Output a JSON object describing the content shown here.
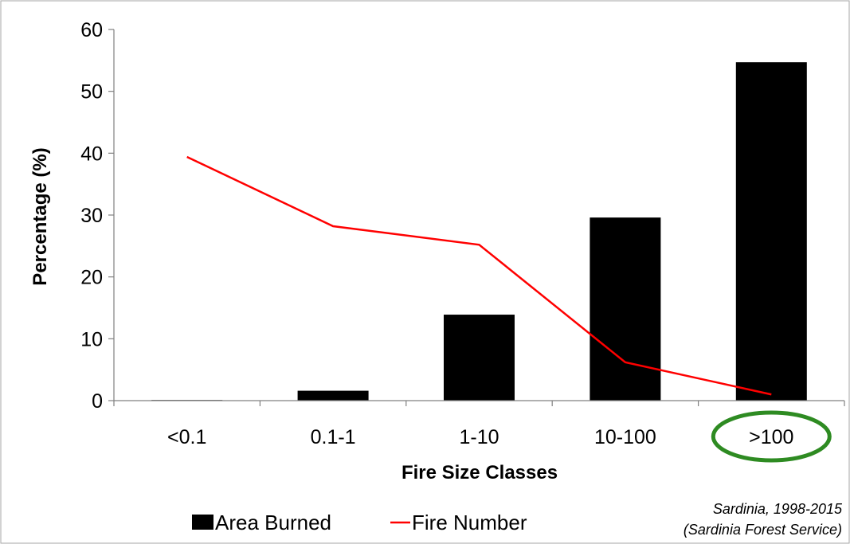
{
  "chart_data": {
    "type": "bar",
    "categories": [
      "<0.1",
      "0.1-1",
      "1-10",
      "10-100",
      ">100"
    ],
    "series": [
      {
        "name": "Area Burned",
        "kind": "bar",
        "color": "#000000",
        "values": [
          0.1,
          1.6,
          13.9,
          29.6,
          54.7
        ]
      },
      {
        "name": "Fire Number",
        "kind": "line",
        "color": "#ff0000",
        "values": [
          39.4,
          28.2,
          25.2,
          6.2,
          1.0
        ]
      }
    ],
    "xlabel": "Fire Size Classes",
    "ylabel": "Percentage (%)",
    "ylim": [
      0,
      60
    ],
    "yticks": [
      0,
      10,
      20,
      30,
      40,
      50,
      60
    ],
    "grid": false,
    "legend_position": "bottom",
    "highlight": {
      "category": ">100",
      "shape": "ellipse",
      "color": "#2e8b22"
    },
    "source_note": [
      "Sardinia, 1998-2015",
      "(Sardinia Forest Service)"
    ]
  }
}
